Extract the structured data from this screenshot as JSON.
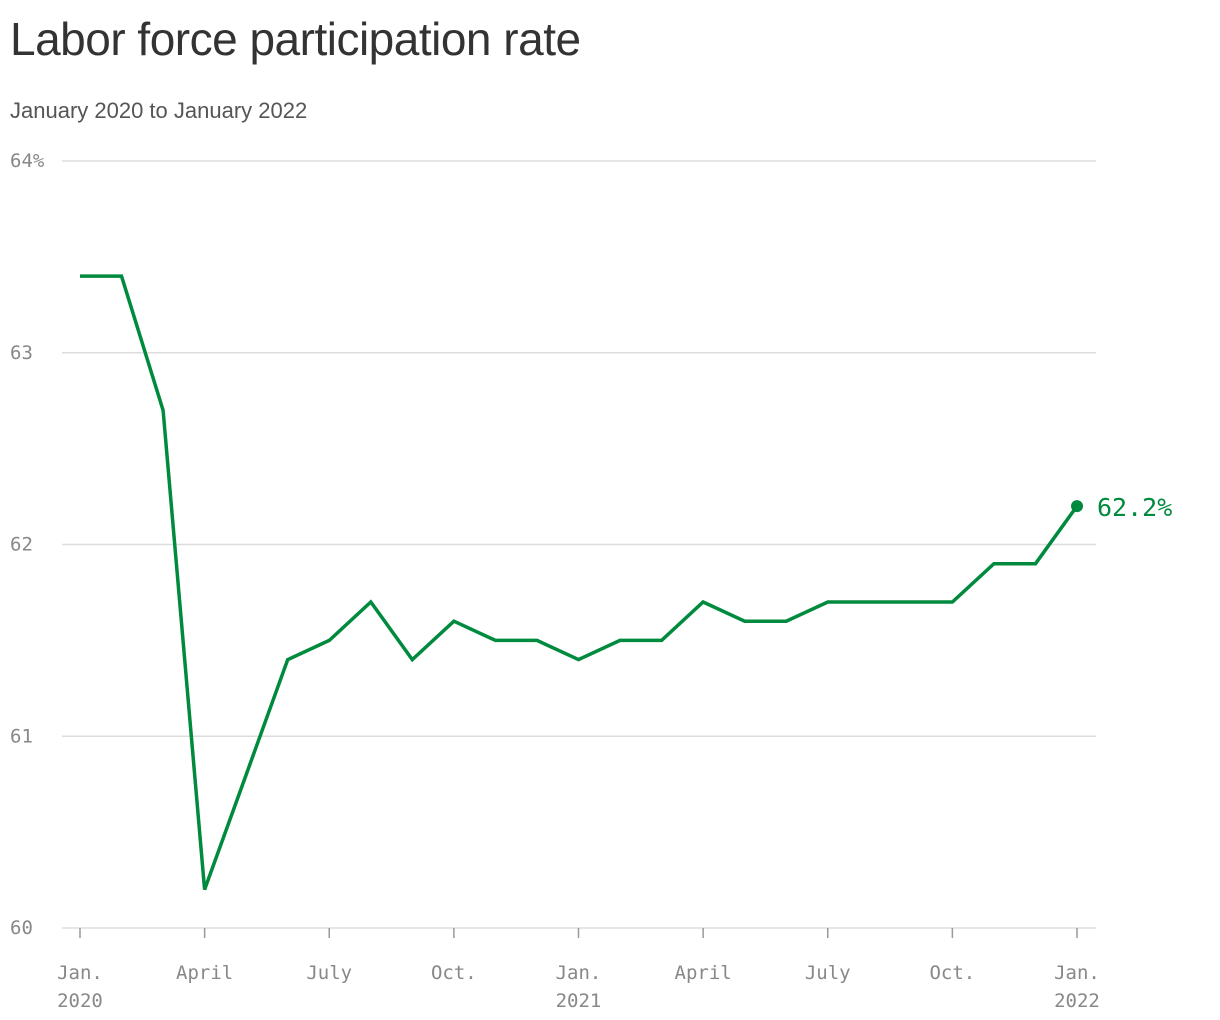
{
  "title": "Labor force participation rate",
  "subtitle": "January 2020 to January 2022",
  "chart_data": {
    "type": "line",
    "title": "Labor force participation rate",
    "subtitle": "January 2020 to January 2022",
    "xlabel": "",
    "ylabel": "",
    "ylim": [
      60,
      64
    ],
    "y_ticks": [
      60,
      61,
      62,
      63,
      64
    ],
    "y_tick_labels": [
      "60",
      "61",
      "62",
      "63",
      "64%"
    ],
    "x": [
      "2020-01",
      "2020-02",
      "2020-03",
      "2020-04",
      "2020-05",
      "2020-06",
      "2020-07",
      "2020-08",
      "2020-09",
      "2020-10",
      "2020-11",
      "2020-12",
      "2021-01",
      "2021-02",
      "2021-03",
      "2021-04",
      "2021-05",
      "2021-06",
      "2021-07",
      "2021-08",
      "2021-09",
      "2021-10",
      "2021-11",
      "2021-12",
      "2022-01"
    ],
    "x_ticks": [
      {
        "x": "2020-01",
        "label": "Jan.",
        "sublabel": "2020"
      },
      {
        "x": "2020-04",
        "label": "April",
        "sublabel": ""
      },
      {
        "x": "2020-07",
        "label": "July",
        "sublabel": ""
      },
      {
        "x": "2020-10",
        "label": "Oct.",
        "sublabel": ""
      },
      {
        "x": "2021-01",
        "label": "Jan.",
        "sublabel": "2021"
      },
      {
        "x": "2021-04",
        "label": "April",
        "sublabel": ""
      },
      {
        "x": "2021-07",
        "label": "July",
        "sublabel": ""
      },
      {
        "x": "2021-10",
        "label": "Oct.",
        "sublabel": ""
      },
      {
        "x": "2022-01",
        "label": "Jan.",
        "sublabel": "2022"
      }
    ],
    "series": [
      {
        "values": [
          63.4,
          63.4,
          62.7,
          60.2,
          60.8,
          61.4,
          61.5,
          61.7,
          61.4,
          61.6,
          61.5,
          61.5,
          61.4,
          61.5,
          61.5,
          61.7,
          61.6,
          61.6,
          61.7,
          61.7,
          61.7,
          61.7,
          61.9,
          61.9,
          62.2
        ],
        "color": "#008a3e"
      }
    ],
    "end_label": "62.2%",
    "grid": true,
    "legend": "none",
    "colors": {
      "line": "#008a3e",
      "grid": "#dddddd",
      "tick_text": "#888888",
      "title": "#333333",
      "subtitle": "#555555"
    }
  }
}
